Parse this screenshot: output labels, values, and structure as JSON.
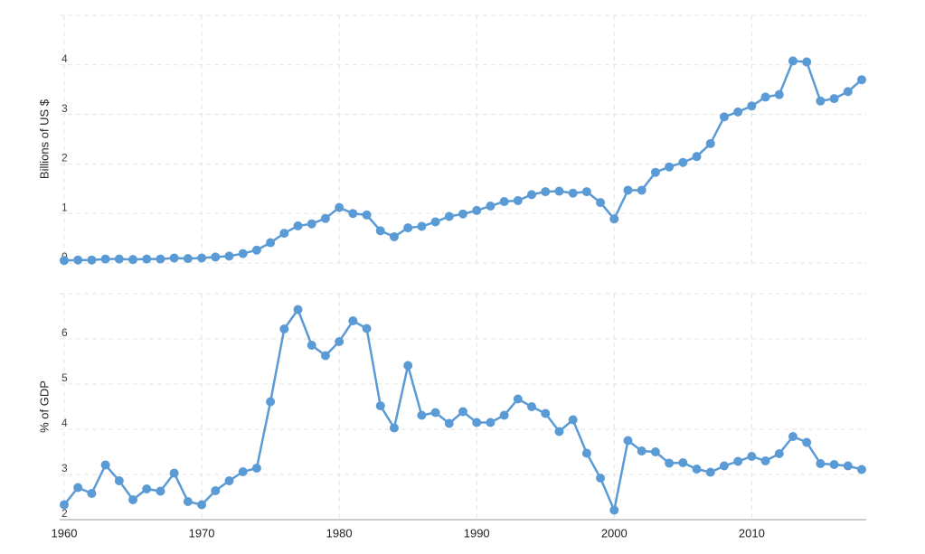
{
  "chart_data": [
    {
      "type": "line",
      "ylabel": "Billions of US $",
      "x": [
        1960,
        1961,
        1962,
        1963,
        1964,
        1965,
        1966,
        1967,
        1968,
        1969,
        1970,
        1971,
        1972,
        1973,
        1974,
        1975,
        1976,
        1977,
        1978,
        1979,
        1980,
        1981,
        1982,
        1983,
        1984,
        1985,
        1986,
        1987,
        1988,
        1989,
        1990,
        1991,
        1992,
        1993,
        1994,
        1995,
        1996,
        1997,
        1998,
        1999,
        2000,
        2001,
        2002,
        2003,
        2004,
        2005,
        2006,
        2007,
        2008,
        2009,
        2010,
        2011,
        2012,
        2013,
        2014,
        2015,
        2016,
        2017,
        2018
      ],
      "values": [
        0.05,
        0.06,
        0.06,
        0.08,
        0.08,
        0.07,
        0.08,
        0.08,
        0.1,
        0.09,
        0.1,
        0.12,
        0.14,
        0.19,
        0.26,
        0.41,
        0.6,
        0.75,
        0.79,
        0.9,
        1.12,
        1.0,
        0.97,
        0.65,
        0.53,
        0.71,
        0.74,
        0.83,
        0.94,
        0.99,
        1.06,
        1.15,
        1.24,
        1.26,
        1.38,
        1.44,
        1.45,
        1.41,
        1.44,
        1.22,
        0.89,
        1.47,
        1.47,
        1.83,
        1.94,
        2.03,
        2.15,
        2.41,
        2.95,
        3.05,
        3.17,
        3.35,
        3.4,
        4.08,
        4.06,
        3.27,
        3.32,
        3.46,
        3.7
      ],
      "color": "#5b9bd5",
      "xlim": [
        1960,
        2018
      ],
      "ylim": [
        0,
        5
      ],
      "yticks": [
        0,
        1,
        2,
        3,
        4
      ],
      "grid": true
    },
    {
      "type": "line",
      "ylabel": "% of GDP",
      "x": [
        1960,
        1961,
        1962,
        1963,
        1964,
        1965,
        1966,
        1967,
        1968,
        1969,
        1970,
        1971,
        1972,
        1973,
        1974,
        1975,
        1976,
        1977,
        1978,
        1979,
        1980,
        1981,
        1982,
        1983,
        1984,
        1985,
        1986,
        1987,
        1988,
        1989,
        1990,
        1991,
        1992,
        1993,
        1994,
        1995,
        1996,
        1997,
        1998,
        1999,
        2000,
        2001,
        2002,
        2003,
        2004,
        2005,
        2006,
        2007,
        2008,
        2009,
        2010,
        2011,
        2012,
        2013,
        2014,
        2015,
        2016,
        2017,
        2018
      ],
      "values": [
        2.33,
        2.71,
        2.58,
        3.21,
        2.86,
        2.44,
        2.68,
        2.63,
        3.03,
        2.4,
        2.33,
        2.64,
        2.86,
        3.06,
        3.14,
        4.61,
        6.22,
        6.65,
        5.86,
        5.63,
        5.94,
        6.4,
        6.23,
        4.52,
        4.03,
        5.41,
        4.31,
        4.37,
        4.13,
        4.39,
        4.15,
        4.15,
        4.31,
        4.67,
        4.5,
        4.35,
        3.95,
        4.21,
        3.47,
        2.92,
        2.21,
        3.75,
        3.52,
        3.5,
        3.25,
        3.26,
        3.12,
        3.05,
        3.19,
        3.29,
        3.4,
        3.3,
        3.46,
        3.84,
        3.71,
        3.24,
        3.22,
        3.19,
        3.11
      ],
      "color": "#5b9bd5",
      "xlim": [
        1960,
        2018
      ],
      "ylim": [
        2,
        7
      ],
      "yticks": [
        2,
        3,
        4,
        5,
        6
      ],
      "xticks": [
        1960,
        1970,
        1980,
        1990,
        2000,
        2010
      ],
      "grid": true
    }
  ]
}
